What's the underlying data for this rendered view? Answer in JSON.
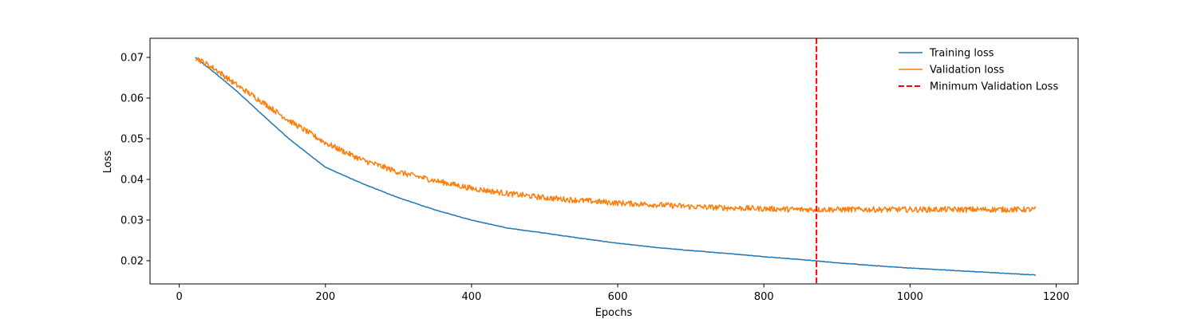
{
  "chart_data": {
    "type": "line",
    "title": "",
    "xlabel": "Epochs",
    "ylabel": "Loss",
    "xlim": [
      -40,
      1230
    ],
    "ylim": [
      0.0143,
      0.0747
    ],
    "x_ticks": [
      0,
      200,
      400,
      600,
      800,
      1000,
      1200
    ],
    "x_tick_labels": [
      "0",
      "200",
      "400",
      "600",
      "800",
      "1000",
      "1200"
    ],
    "y_ticks": [
      0.02,
      0.03,
      0.04,
      0.05,
      0.06,
      0.07
    ],
    "y_tick_labels": [
      "0.02",
      "0.03",
      "0.04",
      "0.05",
      "0.06",
      "0.07"
    ],
    "grid": false,
    "legend_position": "top-right",
    "series": [
      {
        "name": "Training loss",
        "color": "#1f77b4",
        "x": [
          22,
          50,
          80,
          110,
          150,
          200,
          250,
          300,
          350,
          400,
          450,
          500,
          550,
          600,
          650,
          700,
          750,
          800,
          850,
          900,
          950,
          1000,
          1050,
          1100,
          1150,
          1172
        ],
        "y": [
          0.07,
          0.066,
          0.0615,
          0.0565,
          0.05,
          0.043,
          0.039,
          0.0355,
          0.0325,
          0.03,
          0.028,
          0.0268,
          0.0255,
          0.0243,
          0.0233,
          0.0225,
          0.0218,
          0.021,
          0.0203,
          0.0195,
          0.0188,
          0.0182,
          0.0177,
          0.0172,
          0.0167,
          0.0165
        ]
      },
      {
        "name": "Validation loss",
        "color": "#ff7f0e",
        "x": [
          22,
          50,
          80,
          110,
          150,
          200,
          250,
          300,
          350,
          400,
          450,
          500,
          550,
          600,
          650,
          700,
          750,
          800,
          850,
          900,
          950,
          1000,
          1050,
          1100,
          1150,
          1172
        ],
        "y": [
          0.07,
          0.067,
          0.063,
          0.0595,
          0.0545,
          0.049,
          0.0448,
          0.0418,
          0.0397,
          0.0378,
          0.0365,
          0.0355,
          0.0348,
          0.0342,
          0.0338,
          0.0333,
          0.033,
          0.0328,
          0.0326,
          0.0326,
          0.0326,
          0.0326,
          0.0326,
          0.0326,
          0.0326,
          0.0326
        ]
      }
    ],
    "vlines": [
      {
        "name": "Minimum Validation Loss",
        "x": 872,
        "color": "#ff0000",
        "style": "dashed"
      }
    ]
  }
}
